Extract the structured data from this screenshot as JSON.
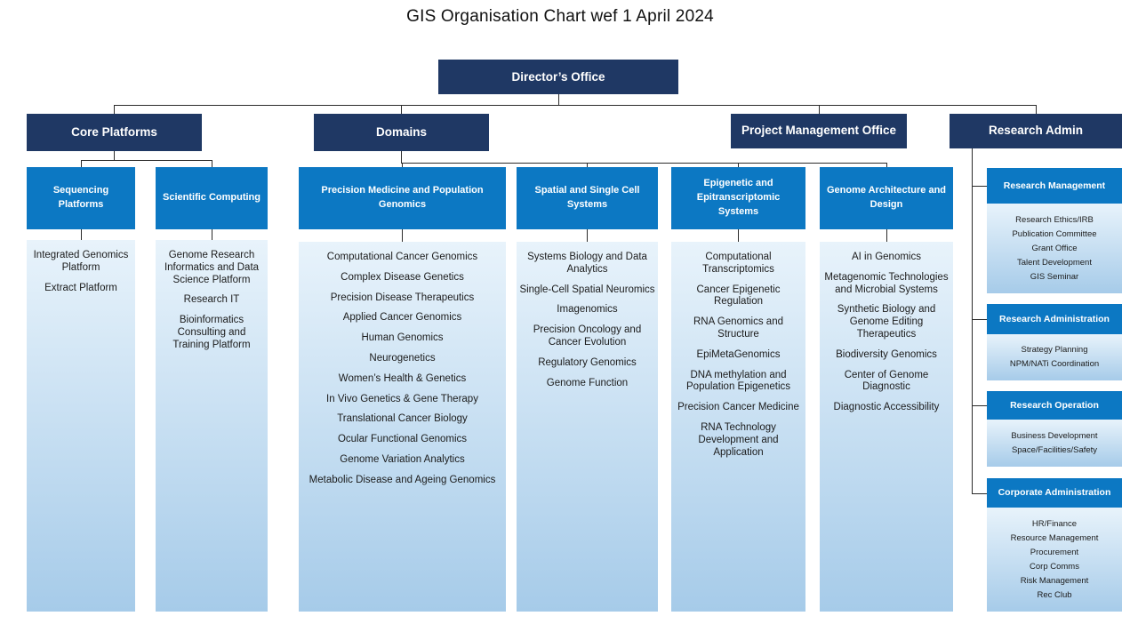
{
  "title": "GIS Organisation Chart wef 1 April 2024",
  "root": {
    "label": "Director’s Office"
  },
  "level2": {
    "core_platforms": "Core Platforms",
    "domains": "Domains",
    "pmo": "Project Management Office",
    "research_admin": "Research Admin"
  },
  "columns": [
    {
      "header": "Sequencing Platforms",
      "items": [
        "Integrated Genomics Platform",
        "Extract Platform"
      ]
    },
    {
      "header": "Scientific Computing",
      "items": [
        "Genome Research Informatics and Data Science Platform",
        "Research IT",
        "Bioinformatics Consulting and Training Platform"
      ]
    },
    {
      "header": "Precision Medicine and Population Genomics",
      "items": [
        "Computational Cancer Genomics",
        "Complex Disease Genetics",
        "Precision Disease Therapeutics",
        "Applied Cancer Genomics",
        "Human Genomics",
        "Neurogenetics",
        "Women’s Health & Genetics",
        "In Vivo Genetics & Gene Therapy",
        "Translational Cancer Biology",
        "Ocular Functional Genomics",
        "Genome Variation Analytics",
        "Metabolic Disease and Ageing Genomics"
      ]
    },
    {
      "header": "Spatial and Single Cell Systems",
      "items": [
        "Systems Biology and Data Analytics",
        "Single-Cell Spatial Neuromics",
        "Imagenomics",
        "Precision Oncology and Cancer Evolution",
        "Regulatory Genomics",
        "Genome Function"
      ]
    },
    {
      "header": "Epigenetic and Epitranscriptomic Systems",
      "items": [
        "Computational Transcriptomics",
        "Cancer Epigenetic Regulation",
        "RNA Genomics and Structure",
        "EpiMetaGenomics",
        "DNA methylation and Population Epigenetics",
        "Precision Cancer Medicine",
        "RNA Technology Development and Application"
      ]
    },
    {
      "header": "Genome Architecture and Design",
      "items": [
        "AI in Genomics",
        "Metagenomic Technologies and Microbial Systems",
        "Synthetic Biology and Genome Editing Therapeutics",
        "Biodiversity Genomics",
        "Center of Genome Diagnostic",
        "Diagnostic Accessibility"
      ]
    }
  ],
  "admin_sections": [
    {
      "header": "Research Management",
      "items": [
        "Research Ethics/IRB",
        "Publication Committee",
        "Grant Office",
        "Talent Development",
        "GIS Seminar"
      ]
    },
    {
      "header": "Research Administration",
      "items": [
        "Strategy Planning",
        "NPM/NATi Coordination"
      ]
    },
    {
      "header": "Research Operation",
      "items": [
        "Business Development",
        "Space/Facilities/Safety"
      ]
    },
    {
      "header": "Corporate Administration",
      "items": [
        "HR/Finance",
        "Resource Management",
        "Procurement",
        "Corp Comms",
        "Risk Management",
        "Rec Club"
      ]
    }
  ],
  "colors": {
    "navy": "#1F3864",
    "blue": "#0C78C3",
    "body_top": "#E8F3FB",
    "body_bottom": "#A6CBE9",
    "line": "#2B2B2B"
  }
}
